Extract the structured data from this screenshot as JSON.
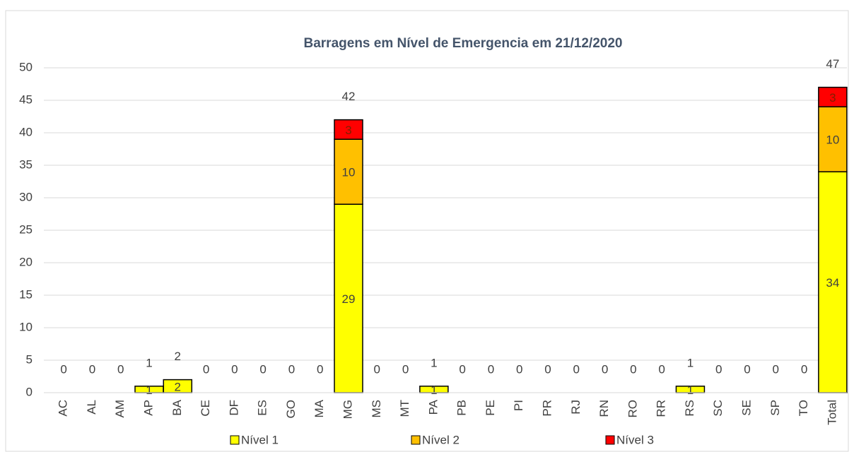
{
  "chart_data": {
    "type": "bar",
    "stacked": true,
    "title": "Barragens em Nível de Emergencia em  21/12/2020",
    "categories": [
      "AC",
      "AL",
      "AM",
      "AP",
      "BA",
      "CE",
      "DF",
      "ES",
      "GO",
      "MA",
      "MG",
      "MS",
      "MT",
      "PA",
      "PB",
      "PE",
      "PI",
      "PR",
      "RJ",
      "RN",
      "RO",
      "RR",
      "RS",
      "SC",
      "SE",
      "SP",
      "TO",
      "Total"
    ],
    "series": [
      {
        "name": "Nível 1",
        "color": "#ffff00",
        "values": [
          0,
          0,
          0,
          1,
          2,
          0,
          0,
          0,
          0,
          0,
          29,
          0,
          0,
          1,
          0,
          0,
          0,
          0,
          0,
          0,
          0,
          0,
          1,
          0,
          0,
          0,
          0,
          34
        ]
      },
      {
        "name": "Nível 2",
        "color": "#ffc000",
        "values": [
          0,
          0,
          0,
          0,
          0,
          0,
          0,
          0,
          0,
          0,
          10,
          0,
          0,
          0,
          0,
          0,
          0,
          0,
          0,
          0,
          0,
          0,
          0,
          0,
          0,
          0,
          0,
          10
        ]
      },
      {
        "name": "Nível 3",
        "color": "#ff0000",
        "values": [
          0,
          0,
          0,
          0,
          0,
          0,
          0,
          0,
          0,
          0,
          3,
          0,
          0,
          0,
          0,
          0,
          0,
          0,
          0,
          0,
          0,
          0,
          0,
          0,
          0,
          0,
          0,
          3
        ]
      }
    ],
    "totals": [
      0,
      0,
      0,
      1,
      2,
      0,
      0,
      0,
      0,
      0,
      42,
      0,
      0,
      1,
      0,
      0,
      0,
      0,
      0,
      0,
      0,
      0,
      1,
      0,
      0,
      0,
      0,
      47
    ],
    "ylim": [
      0,
      50
    ],
    "yticks": [
      0,
      5,
      10,
      15,
      20,
      25,
      30,
      35,
      40,
      45,
      50
    ],
    "grid": true,
    "legend": "bottom"
  }
}
